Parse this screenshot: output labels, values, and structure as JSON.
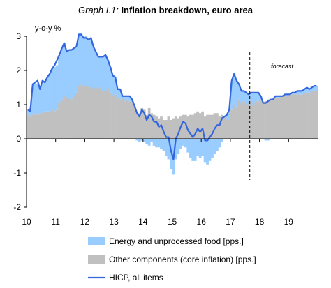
{
  "chart_data": {
    "type": "area",
    "title_prefix": "Graph I.1:",
    "title": "Inflation breakdown, euro area",
    "ylabel": "y-o-y %",
    "xlabel": "",
    "ylim": [
      -2,
      3
    ],
    "xlim": [
      2010.0,
      2020.0
    ],
    "yticks": [
      "-2",
      "-1",
      "0",
      "1",
      "2",
      "3"
    ],
    "xticks": [
      "10",
      "11",
      "12",
      "13",
      "14",
      "15",
      "16",
      "17",
      "18",
      "19"
    ],
    "grid": false,
    "legend": "bottom",
    "annotation": {
      "text": "forecast",
      "x": 2017.667
    },
    "series": [
      {
        "name": "Energy and unprocessed food [pps.]",
        "kind": "bar",
        "color": "#99CCFF",
        "x": [
          2010.0,
          2010.083,
          2010.167,
          2010.25,
          2010.333,
          2010.417,
          2010.5,
          2010.583,
          2010.667,
          2010.75,
          2010.833,
          2010.917,
          2011.0,
          2011.083,
          2011.167,
          2011.25,
          2011.333,
          2011.417,
          2011.5,
          2011.583,
          2011.667,
          2011.75,
          2011.833,
          2011.917,
          2012.0,
          2012.083,
          2012.167,
          2012.25,
          2012.333,
          2012.417,
          2012.5,
          2012.583,
          2012.667,
          2012.75,
          2012.833,
          2012.917,
          2013.0,
          2013.083,
          2013.167,
          2013.25,
          2013.333,
          2013.417,
          2013.5,
          2013.583,
          2013.667,
          2013.75,
          2013.833,
          2013.917,
          2014.0,
          2014.083,
          2014.167,
          2014.25,
          2014.333,
          2014.417,
          2014.5,
          2014.583,
          2014.667,
          2014.75,
          2014.833,
          2014.917,
          2015.0,
          2015.083,
          2015.167,
          2015.25,
          2015.333,
          2015.417,
          2015.5,
          2015.583,
          2015.667,
          2015.75,
          2015.833,
          2015.917,
          2016.0,
          2016.083,
          2016.167,
          2016.25,
          2016.333,
          2016.417,
          2016.5,
          2016.583,
          2016.667,
          2016.75,
          2016.833,
          2016.917,
          2017.0,
          2017.083,
          2017.167,
          2017.25,
          2017.333,
          2017.417,
          2017.5,
          2017.583,
          2017.667,
          2017.75,
          2017.833,
          2017.917,
          2018.0,
          2018.083,
          2018.167,
          2018.25,
          2018.333,
          2018.417,
          2018.5,
          2018.583,
          2018.667,
          2018.75,
          2018.833,
          2018.917,
          2019.0,
          2019.083,
          2019.167,
          2019.25,
          2019.333,
          2019.417,
          2019.5,
          2019.583,
          2019.667,
          2019.75,
          2019.833,
          2019.917
        ],
        "values": [
          0.15,
          0.25,
          0.8,
          0.85,
          0.9,
          0.75,
          0.85,
          0.9,
          1.0,
          1.1,
          1.2,
          1.3,
          1.3,
          1.4,
          1.5,
          1.55,
          1.35,
          1.4,
          1.45,
          1.4,
          1.35,
          1.55,
          1.5,
          1.4,
          1.45,
          1.35,
          1.45,
          1.25,
          1.05,
          0.95,
          0.9,
          1.0,
          1.05,
          0.85,
          0.75,
          0.6,
          0.5,
          0.25,
          0.3,
          0.05,
          0.15,
          0.1,
          0.15,
          0.1,
          0.0,
          -0.05,
          -0.1,
          -0.05,
          -0.1,
          -0.15,
          -0.2,
          -0.1,
          -0.2,
          -0.25,
          -0.25,
          -0.3,
          -0.35,
          -0.5,
          -0.6,
          -0.9,
          -1.05,
          -0.6,
          -0.45,
          -0.3,
          -0.2,
          -0.25,
          -0.4,
          -0.55,
          -0.65,
          -0.65,
          -0.5,
          -0.55,
          -0.5,
          -0.7,
          -0.75,
          -0.65,
          -0.55,
          -0.45,
          -0.35,
          -0.25,
          -0.1,
          0.0,
          0.1,
          0.3,
          0.8,
          0.9,
          0.8,
          0.45,
          0.35,
          0.3,
          0.35,
          0.25,
          0.25,
          0.35,
          0.25,
          0.25,
          0.1,
          0.0,
          -0.05,
          -0.05,
          0.0,
          0.0,
          0.05,
          0.05,
          0.0,
          0.0,
          0.05,
          0.05,
          0.0,
          0.05,
          0.05,
          0.1,
          0.1,
          0.1,
          0.1,
          0.15,
          0.1,
          0.1,
          0.15,
          0.15
        ]
      },
      {
        "name": "Other components (core inflation) [pps.]",
        "kind": "bar",
        "color": "#C0C0C0",
        "x": [
          2010.0,
          2010.083,
          2010.167,
          2010.25,
          2010.333,
          2010.417,
          2010.5,
          2010.583,
          2010.667,
          2010.75,
          2010.833,
          2010.917,
          2011.0,
          2011.083,
          2011.167,
          2011.25,
          2011.333,
          2011.417,
          2011.5,
          2011.583,
          2011.667,
          2011.75,
          2011.833,
          2011.917,
          2012.0,
          2012.083,
          2012.167,
          2012.25,
          2012.333,
          2012.417,
          2012.5,
          2012.583,
          2012.667,
          2012.75,
          2012.833,
          2012.917,
          2013.0,
          2013.083,
          2013.167,
          2013.25,
          2013.333,
          2013.417,
          2013.5,
          2013.583,
          2013.667,
          2013.75,
          2013.833,
          2013.917,
          2014.0,
          2014.083,
          2014.167,
          2014.25,
          2014.333,
          2014.417,
          2014.5,
          2014.583,
          2014.667,
          2014.75,
          2014.833,
          2014.917,
          2015.0,
          2015.083,
          2015.167,
          2015.25,
          2015.333,
          2015.417,
          2015.5,
          2015.583,
          2015.667,
          2015.75,
          2015.833,
          2015.917,
          2016.0,
          2016.083,
          2016.167,
          2016.25,
          2016.333,
          2016.417,
          2016.5,
          2016.583,
          2016.667,
          2016.75,
          2016.833,
          2016.917,
          2017.0,
          2017.083,
          2017.167,
          2017.25,
          2017.333,
          2017.417,
          2017.5,
          2017.583,
          2017.667,
          2017.75,
          2017.833,
          2017.917,
          2018.0,
          2018.083,
          2018.167,
          2018.25,
          2018.333,
          2018.417,
          2018.5,
          2018.583,
          2018.667,
          2018.75,
          2018.833,
          2018.917,
          2019.0,
          2019.083,
          2019.167,
          2019.25,
          2019.333,
          2019.417,
          2019.5,
          2019.583,
          2019.667,
          2019.75,
          2019.833,
          2019.917
        ],
        "values": [
          0.7,
          0.65,
          0.7,
          0.75,
          0.7,
          0.75,
          0.75,
          0.8,
          0.8,
          0.8,
          0.85,
          0.8,
          0.85,
          1.05,
          1.15,
          1.25,
          1.2,
          1.2,
          1.15,
          1.25,
          1.35,
          1.55,
          1.6,
          1.55,
          1.55,
          1.55,
          1.5,
          1.45,
          1.5,
          1.45,
          1.5,
          1.4,
          1.4,
          1.45,
          1.35,
          1.25,
          1.3,
          1.2,
          1.15,
          1.2,
          1.1,
          1.15,
          1.1,
          1.05,
          0.95,
          0.8,
          0.75,
          0.9,
          0.85,
          0.7,
          0.9,
          0.75,
          0.7,
          0.65,
          0.6,
          0.65,
          0.55,
          0.55,
          0.65,
          0.55,
          0.6,
          0.65,
          0.6,
          0.65,
          0.7,
          0.7,
          0.65,
          0.7,
          0.7,
          0.75,
          0.8,
          0.75,
          0.8,
          0.65,
          0.7,
          0.7,
          0.7,
          0.75,
          0.75,
          0.65,
          0.7,
          0.65,
          0.6,
          0.55,
          0.85,
          1.0,
          0.9,
          1.15,
          1.05,
          1.1,
          1.0,
          1.05,
          1.1,
          1.0,
          1.1,
          1.1,
          1.15,
          1.05,
          1.1,
          1.15,
          1.15,
          1.15,
          1.2,
          1.2,
          1.25,
          1.25,
          1.25,
          1.25,
          1.3,
          1.3,
          1.3,
          1.3,
          1.3,
          1.3,
          1.35,
          1.35,
          1.35,
          1.4,
          1.4,
          1.4
        ]
      },
      {
        "name": "HICP, all items",
        "kind": "line",
        "color": "#3366DD",
        "x": [
          2010.0,
          2010.083,
          2010.167,
          2010.25,
          2010.333,
          2010.417,
          2010.5,
          2010.583,
          2010.667,
          2010.75,
          2010.833,
          2010.917,
          2011.0,
          2011.083,
          2011.167,
          2011.25,
          2011.333,
          2011.417,
          2011.5,
          2011.583,
          2011.667,
          2011.75,
          2011.833,
          2011.917,
          2012.0,
          2012.083,
          2012.167,
          2012.25,
          2012.333,
          2012.417,
          2012.5,
          2012.583,
          2012.667,
          2012.75,
          2012.833,
          2012.917,
          2013.0,
          2013.083,
          2013.167,
          2013.25,
          2013.333,
          2013.417,
          2013.5,
          2013.583,
          2013.667,
          2013.75,
          2013.833,
          2013.917,
          2014.0,
          2014.083,
          2014.167,
          2014.25,
          2014.333,
          2014.417,
          2014.5,
          2014.583,
          2014.667,
          2014.75,
          2014.833,
          2014.917,
          2015.0,
          2015.083,
          2015.167,
          2015.25,
          2015.333,
          2015.417,
          2015.5,
          2015.583,
          2015.667,
          2015.75,
          2015.833,
          2015.917,
          2016.0,
          2016.083,
          2016.167,
          2016.25,
          2016.333,
          2016.417,
          2016.5,
          2016.583,
          2016.667,
          2016.75,
          2016.833,
          2016.917,
          2017.0,
          2017.083,
          2017.167,
          2017.25,
          2017.333,
          2017.417,
          2017.5,
          2017.583,
          2017.667,
          2017.75,
          2017.833,
          2017.917,
          2018.0,
          2018.083,
          2018.167,
          2018.25,
          2018.333,
          2018.417,
          2018.5,
          2018.583,
          2018.667,
          2018.75,
          2018.833,
          2018.917,
          2019.0,
          2019.083,
          2019.167,
          2019.25,
          2019.333,
          2019.417,
          2019.5,
          2019.583,
          2019.667,
          2019.75,
          2019.833,
          2019.917
        ],
        "values": [
          0.85,
          0.8,
          1.6,
          1.65,
          1.7,
          1.45,
          1.7,
          1.65,
          1.8,
          1.9,
          2.05,
          2.15,
          2.3,
          2.45,
          2.65,
          2.8,
          2.55,
          2.6,
          2.6,
          2.65,
          2.7,
          3.05,
          3.05,
          2.95,
          2.95,
          2.9,
          2.95,
          2.7,
          2.55,
          2.4,
          2.4,
          2.4,
          2.45,
          2.3,
          2.1,
          1.85,
          1.8,
          1.45,
          1.45,
          1.25,
          1.25,
          1.25,
          1.25,
          1.15,
          0.95,
          0.75,
          0.65,
          0.85,
          0.75,
          0.55,
          0.7,
          0.65,
          0.5,
          0.5,
          0.35,
          0.4,
          0.2,
          0.05,
          0.05,
          -0.35,
          -0.6,
          0.0,
          0.15,
          0.35,
          0.5,
          0.45,
          0.25,
          0.15,
          0.05,
          0.15,
          0.3,
          0.2,
          0.3,
          -0.05,
          -0.05,
          0.05,
          0.15,
          0.3,
          0.4,
          0.4,
          0.6,
          0.65,
          0.7,
          0.85,
          1.7,
          1.9,
          1.7,
          1.6,
          1.4,
          1.4,
          1.35,
          1.3,
          1.35,
          1.35,
          1.35,
          1.35,
          1.25,
          1.05,
          1.05,
          1.1,
          1.15,
          1.15,
          1.25,
          1.25,
          1.25,
          1.25,
          1.3,
          1.3,
          1.3,
          1.35,
          1.35,
          1.4,
          1.4,
          1.4,
          1.45,
          1.5,
          1.45,
          1.5,
          1.55,
          1.55
        ]
      }
    ]
  }
}
